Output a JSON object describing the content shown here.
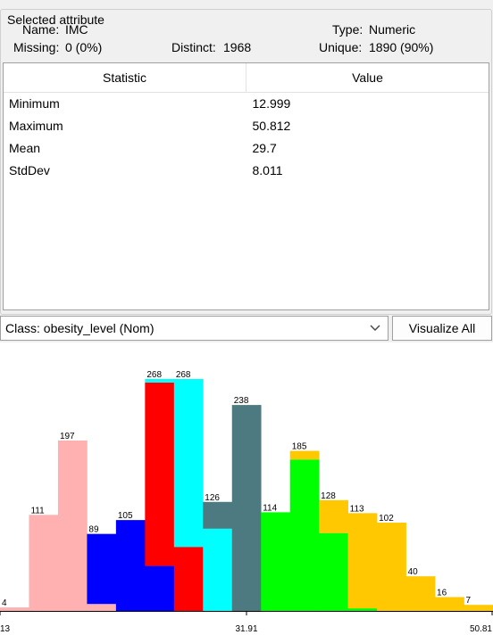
{
  "selected_attribute": {
    "title": "Selected attribute",
    "name_label": "Name:",
    "name": "IMC",
    "type_label": "Type:",
    "type": "Numeric",
    "missing_label": "Missing:",
    "missing": "0 (0%)",
    "distinct_label": "Distinct:",
    "distinct": "1968",
    "unique_label": "Unique:",
    "unique": "1890 (90%)"
  },
  "stats_table": {
    "headers": [
      "Statistic",
      "Value"
    ],
    "rows": [
      {
        "stat": "Minimum",
        "value": "12.999"
      },
      {
        "stat": "Maximum",
        "value": "50.812"
      },
      {
        "stat": "Mean",
        "value": "29.7"
      },
      {
        "stat": "StdDev",
        "value": "8.011"
      }
    ]
  },
  "class_select": {
    "value": "Class: obesity_level (Nom)",
    "icon": "chevron-down-icon"
  },
  "visualize_all": {
    "label": "Visualize All"
  },
  "chart_data": {
    "type": "bar",
    "stacked": true,
    "x_tick_labels": [
      "13",
      "31.91",
      "50.81"
    ],
    "totals": [
      4,
      111,
      197,
      89,
      105,
      268,
      268,
      126,
      238,
      114,
      185,
      128,
      113,
      102,
      40,
      16,
      7
    ],
    "series": [
      {
        "color": "#ffb0b0",
        "values": [
          4,
          111,
          197,
          8,
          0,
          0,
          0,
          0,
          0,
          0,
          0,
          0,
          0,
          0,
          0,
          0,
          0
        ]
      },
      {
        "color": "#0000ff",
        "values": [
          0,
          0,
          0,
          81,
          105,
          52,
          0,
          0,
          0,
          0,
          0,
          0,
          0,
          0,
          0,
          0,
          0
        ]
      },
      {
        "color": "#ff0000",
        "values": [
          0,
          0,
          0,
          0,
          0,
          212,
          74,
          0,
          0,
          0,
          0,
          0,
          0,
          0,
          0,
          0,
          0
        ]
      },
      {
        "color": "#00ffff",
        "values": [
          0,
          0,
          0,
          0,
          0,
          4,
          194,
          95,
          0,
          0,
          0,
          0,
          0,
          0,
          0,
          0,
          0
        ]
      },
      {
        "color": "#4c7a80",
        "values": [
          0,
          0,
          0,
          0,
          0,
          0,
          0,
          31,
          238,
          0,
          0,
          0,
          0,
          0,
          0,
          0,
          0
        ]
      },
      {
        "color": "#00ff00",
        "values": [
          0,
          0,
          0,
          0,
          0,
          0,
          0,
          0,
          0,
          114,
          175,
          90,
          3,
          0,
          0,
          0,
          0
        ]
      },
      {
        "color": "#ffc800",
        "values": [
          0,
          0,
          0,
          0,
          0,
          0,
          0,
          0,
          0,
          0,
          10,
          38,
          110,
          102,
          40,
          16,
          7
        ]
      }
    ]
  }
}
